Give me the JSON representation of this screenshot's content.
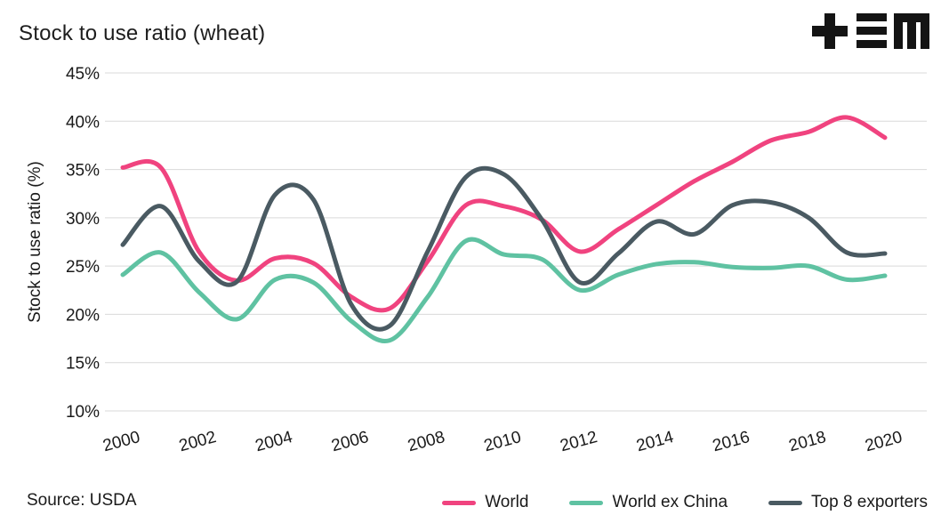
{
  "header": {
    "title": "Stock to use ratio (wheat)",
    "logo": "tem-logo"
  },
  "footer": {
    "source": "Source: USDA"
  },
  "chart_data": {
    "type": "line",
    "title": "Stock to use ratio (wheat)",
    "xlabel": "",
    "ylabel": "Stock to use ratio (%)",
    "x": [
      2000,
      2001,
      2002,
      2003,
      2004,
      2005,
      2006,
      2007,
      2008,
      2009,
      2010,
      2011,
      2012,
      2013,
      2014,
      2015,
      2016,
      2017,
      2018,
      2019,
      2020
    ],
    "x_tick_years": [
      2000,
      2002,
      2004,
      2006,
      2008,
      2010,
      2012,
      2014,
      2016,
      2018,
      2020
    ],
    "y_ticks": [
      10,
      15,
      20,
      25,
      30,
      35,
      40,
      45
    ],
    "y_tick_format": "percent",
    "ylim": [
      10,
      45
    ],
    "grid": "horizontal-only",
    "legend_position": "bottom",
    "background": "#ffffff",
    "gridline_color": "#d9d9d9",
    "text_color": "#1a1a1a",
    "series": [
      {
        "name": "World",
        "color": "#f0437f",
        "values": [
          35.2,
          35.2,
          26.5,
          23.5,
          25.8,
          25.3,
          21.8,
          20.6,
          25.5,
          31.3,
          31.2,
          29.8,
          26.5,
          28.8,
          31.3,
          33.8,
          35.8,
          38.0,
          38.9,
          40.4,
          38.3
        ]
      },
      {
        "name": "World ex China",
        "color": "#5fc2a2",
        "values": [
          24.1,
          26.4,
          22.3,
          19.5,
          23.6,
          23.3,
          19.3,
          17.3,
          21.8,
          27.6,
          26.2,
          25.7,
          22.5,
          24.1,
          25.2,
          25.4,
          24.9,
          24.8,
          25.0,
          23.6,
          24.0
        ]
      },
      {
        "name": "Top 8 exporters",
        "color": "#4a5a62",
        "values": [
          27.2,
          31.2,
          25.5,
          23.4,
          32.4,
          31.9,
          21.0,
          18.8,
          26.5,
          34.2,
          34.5,
          29.8,
          23.3,
          26.3,
          29.6,
          28.3,
          31.3,
          31.6,
          30.0,
          26.4,
          26.3
        ]
      }
    ]
  }
}
